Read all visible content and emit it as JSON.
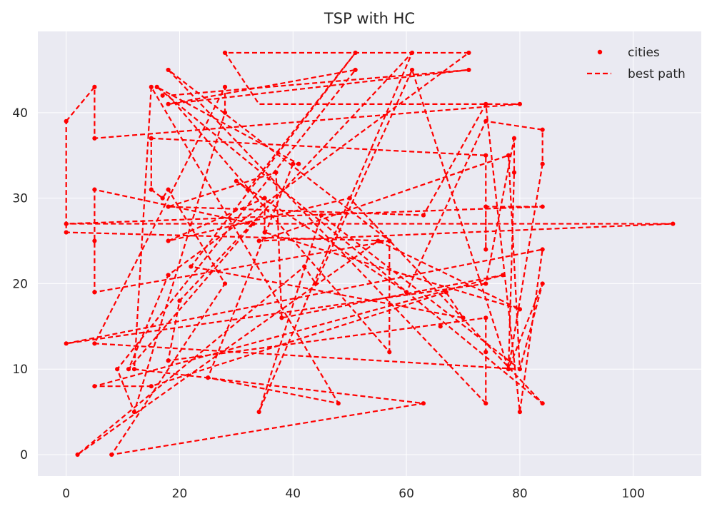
{
  "chart_data": {
    "type": "line",
    "title": "TSP with HC",
    "xlabel": "",
    "ylabel": "",
    "xlim": [
      -5,
      112
    ],
    "ylim": [
      -2.5,
      49.5
    ],
    "xticks": [
      0,
      20,
      40,
      60,
      80,
      100
    ],
    "yticks": [
      0,
      10,
      20,
      30,
      40
    ],
    "grid": true,
    "legend_position": "top-right",
    "series": [
      {
        "name": "cities",
        "kind": "scatter",
        "color": "#ff0000",
        "points": [
          [
            0,
            39
          ],
          [
            5,
            43
          ],
          [
            5,
            37
          ],
          [
            5,
            31
          ],
          [
            5,
            25
          ],
          [
            5,
            19
          ],
          [
            5,
            13
          ],
          [
            5,
            8
          ],
          [
            0,
            27
          ],
          [
            0,
            26
          ],
          [
            0,
            13
          ],
          [
            2,
            0
          ],
          [
            8,
            0
          ],
          [
            12,
            5
          ],
          [
            9,
            10
          ],
          [
            11,
            10
          ],
          [
            12,
            10
          ],
          [
            15,
            8
          ],
          [
            15,
            43
          ],
          [
            16,
            43
          ],
          [
            17,
            42
          ],
          [
            18,
            45
          ],
          [
            18,
            41
          ],
          [
            15,
            37
          ],
          [
            15,
            31
          ],
          [
            17,
            30
          ],
          [
            18,
            31
          ],
          [
            18,
            29
          ],
          [
            18,
            25
          ],
          [
            18,
            21
          ],
          [
            18,
            11
          ],
          [
            22,
            22
          ],
          [
            20,
            18
          ],
          [
            25,
            9
          ],
          [
            28,
            47
          ],
          [
            28,
            43
          ],
          [
            28,
            40
          ],
          [
            28,
            20
          ],
          [
            30,
            32
          ],
          [
            32,
            31
          ],
          [
            33,
            27
          ],
          [
            34,
            25
          ],
          [
            34,
            5
          ],
          [
            35,
            30
          ],
          [
            35,
            26
          ],
          [
            37,
            33
          ],
          [
            38,
            16
          ],
          [
            40,
            34
          ],
          [
            41,
            34
          ],
          [
            42,
            22
          ],
          [
            44,
            20
          ],
          [
            45,
            28
          ],
          [
            48,
            6
          ],
          [
            50,
            30
          ],
          [
            51,
            45
          ],
          [
            51,
            47
          ],
          [
            55,
            25
          ],
          [
            57,
            12
          ],
          [
            57,
            25
          ],
          [
            60,
            19
          ],
          [
            61,
            47
          ],
          [
            61,
            45
          ],
          [
            63,
            6
          ],
          [
            63,
            28
          ],
          [
            66,
            15
          ],
          [
            67,
            19
          ],
          [
            70,
            16
          ],
          [
            71,
            47
          ],
          [
            71,
            45
          ],
          [
            74,
            41
          ],
          [
            74,
            39
          ],
          [
            74,
            35
          ],
          [
            74,
            29
          ],
          [
            74,
            24
          ],
          [
            74,
            20
          ],
          [
            74,
            16
          ],
          [
            74,
            12
          ],
          [
            74,
            6
          ],
          [
            77,
            21
          ],
          [
            78,
            35
          ],
          [
            79,
            33
          ],
          [
            79,
            37
          ],
          [
            78,
            10
          ],
          [
            80,
            10
          ],
          [
            80,
            5
          ],
          [
            80,
            41
          ],
          [
            80,
            17
          ],
          [
            84,
            38
          ],
          [
            84,
            34
          ],
          [
            84,
            29
          ],
          [
            84,
            24
          ],
          [
            84,
            20
          ],
          [
            84,
            6
          ],
          [
            107,
            27
          ]
        ]
      },
      {
        "name": "best path",
        "kind": "line",
        "color": "#ff0000",
        "dash": "dashed",
        "points": [
          [
            0,
            39
          ],
          [
            5,
            43
          ],
          [
            5,
            37
          ],
          [
            80,
            41
          ],
          [
            34,
            41
          ],
          [
            28,
            47
          ],
          [
            71,
            47
          ],
          [
            18,
            21
          ],
          [
            11,
            10
          ],
          [
            33,
            27
          ],
          [
            5,
            31
          ],
          [
            5,
            25
          ],
          [
            5,
            19
          ],
          [
            57,
            25
          ],
          [
            18,
            45
          ],
          [
            74,
            6
          ],
          [
            74,
            12
          ],
          [
            74,
            16
          ],
          [
            18,
            11
          ],
          [
            20,
            18
          ],
          [
            61,
            47
          ],
          [
            34,
            5
          ],
          [
            45,
            28
          ],
          [
            80,
            10
          ],
          [
            5,
            13
          ],
          [
            28,
            43
          ],
          [
            28,
            40
          ],
          [
            12,
            5
          ],
          [
            9,
            10
          ],
          [
            51,
            45
          ],
          [
            18,
            41
          ],
          [
            71,
            45
          ],
          [
            18,
            42
          ],
          [
            57,
            12
          ],
          [
            57,
            25
          ],
          [
            0,
            26
          ],
          [
            0,
            27
          ],
          [
            84,
            29
          ],
          [
            74,
            29
          ],
          [
            74,
            24
          ],
          [
            74,
            35
          ],
          [
            15,
            37
          ],
          [
            15,
            31
          ],
          [
            17,
            30
          ],
          [
            18,
            31
          ],
          [
            28,
            20
          ],
          [
            8,
            0
          ],
          [
            63,
            6
          ],
          [
            12,
            10
          ],
          [
            15,
            43
          ],
          [
            48,
            6
          ],
          [
            25,
            9
          ],
          [
            40,
            34
          ],
          [
            41,
            34
          ],
          [
            16,
            43
          ],
          [
            84,
            6
          ],
          [
            50,
            30
          ],
          [
            18,
            25
          ],
          [
            35,
            30
          ],
          [
            35,
            26
          ],
          [
            80,
            17
          ],
          [
            55,
            25
          ],
          [
            2,
            0
          ],
          [
            42,
            22
          ],
          [
            44,
            20
          ],
          [
            61,
            45
          ],
          [
            78,
            10
          ],
          [
            79,
            33
          ],
          [
            79,
            37
          ],
          [
            74,
            20
          ],
          [
            0,
            13
          ],
          [
            84,
            24
          ],
          [
            80,
            5
          ],
          [
            74,
            41
          ],
          [
            63,
            28
          ],
          [
            18,
            29
          ],
          [
            37,
            33
          ],
          [
            38,
            16
          ],
          [
            77,
            21
          ],
          [
            5,
            8
          ],
          [
            15,
            8
          ],
          [
            67,
            19
          ],
          [
            70,
            16
          ],
          [
            22,
            22
          ],
          [
            51,
            47
          ],
          [
            32,
            31
          ],
          [
            30,
            32
          ],
          [
            60,
            19
          ],
          [
            74,
            39
          ],
          [
            84,
            38
          ],
          [
            84,
            34
          ],
          [
            78,
            10
          ],
          [
            84,
            20
          ],
          [
            80,
            10
          ],
          [
            78,
            35
          ],
          [
            34,
            25
          ],
          [
            107,
            27
          ],
          [
            0,
            27
          ],
          [
            0,
            39
          ]
        ]
      }
    ]
  }
}
